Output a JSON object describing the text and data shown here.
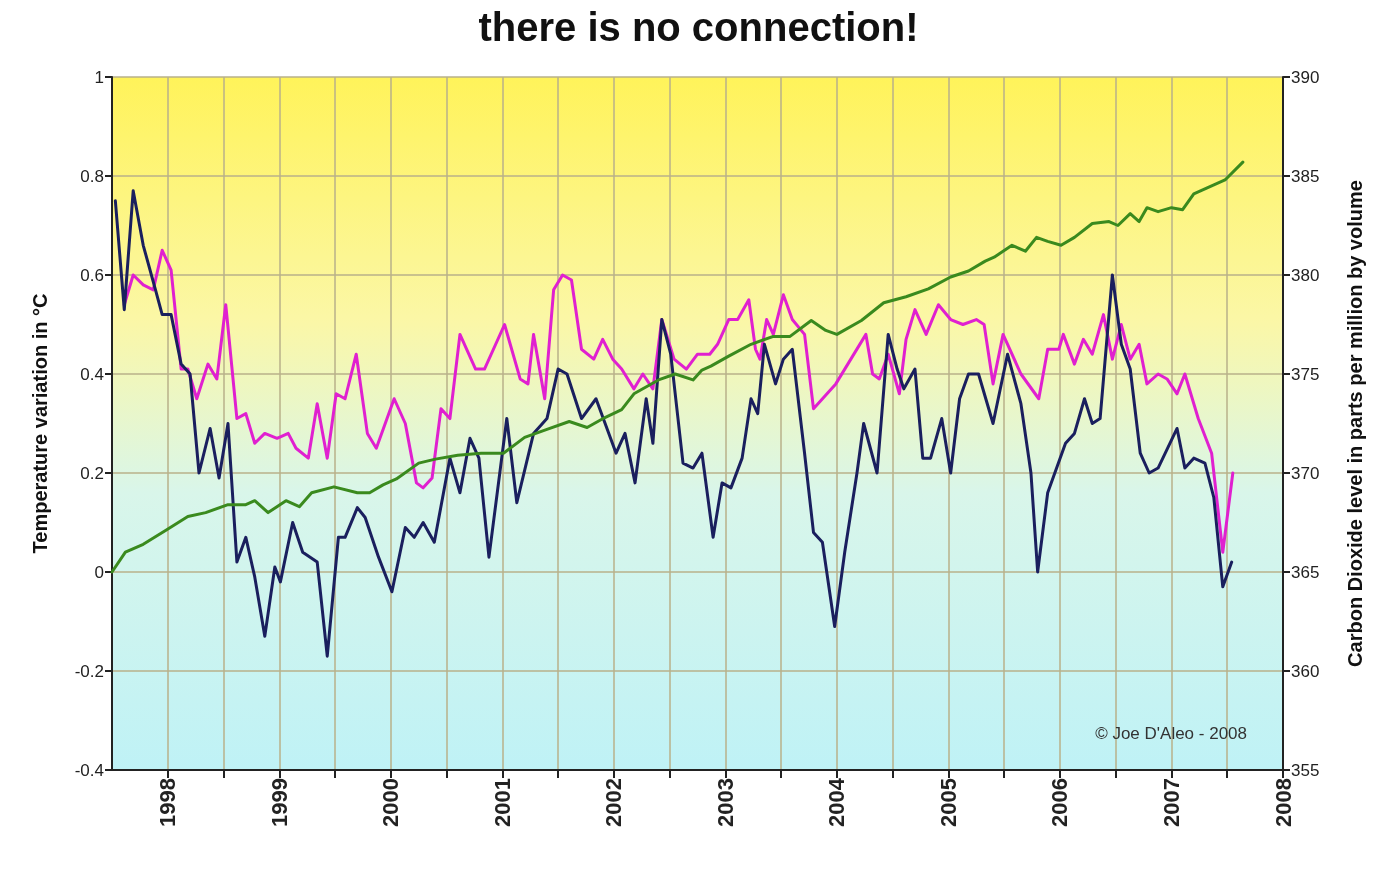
{
  "chart_data": {
    "type": "line",
    "title": "there is no connection!",
    "ylabel": "Temperature variation in °C",
    "y2label": "Carbon Dioxide level in parts per million by volume",
    "annotations": [
      "© Joe D'Aleo - 2008"
    ],
    "xlim": [
      1997.5,
      2008
    ],
    "xticks": [
      1998,
      {
        "value": 1998.5,
        "label": null
      },
      1999,
      {
        "value": 1999.5,
        "label": null
      },
      2000,
      {
        "value": 2000.5,
        "label": null
      },
      2001,
      {
        "value": 2001.5,
        "label": null
      },
      2002,
      {
        "value": 2002.5,
        "label": null
      },
      2003,
      {
        "value": 2003.5,
        "label": null
      },
      2004,
      {
        "value": 2004.5,
        "label": null
      },
      2005,
      {
        "value": 2005.5,
        "label": null
      },
      2006,
      {
        "value": 2006.5,
        "label": null
      },
      2007,
      {
        "value": 2007.5,
        "label": null
      },
      2008
    ],
    "ylim": [
      -0.4,
      1
    ],
    "yticks": [
      -0.4,
      -0.2,
      0,
      0.2,
      0.4,
      0.6,
      0.8,
      1
    ],
    "y2lim": [
      355,
      390
    ],
    "y2ticks": [
      355,
      360,
      365,
      370,
      375,
      380,
      385,
      390
    ],
    "grid": true,
    "line_style": "solid",
    "series": [
      {
        "color": "#e020d0",
        "x": [
          1997.61,
          1997.69,
          1997.78,
          1997.87,
          1997.95,
          1998.03,
          1998.12,
          1998.18,
          1998.26,
          1998.36,
          1998.44,
          1998.52,
          1998.62,
          1998.7,
          1998.78,
          1998.87,
          1998.98,
          1999.08,
          1999.15,
          1999.26,
          1999.34,
          1999.43,
          1999.51,
          1999.59,
          1999.69,
          1999.79,
          1999.87,
          2000.03,
          2000.13,
          2000.23,
          2000.29,
          2000.37,
          2000.45,
          2000.53,
          2000.62,
          2000.76,
          2000.84,
          2001.02,
          2001.16,
          2001.23,
          2001.28,
          2001.38,
          2001.46,
          2001.54,
          2001.62,
          2001.71,
          2001.82,
          2001.9,
          2001.99,
          2002.07,
          2002.18,
          2002.26,
          2002.35,
          2002.43,
          2002.54,
          2002.65,
          2002.75,
          2002.86,
          2002.93,
          2003.03,
          2003.11,
          2003.21,
          2003.27,
          2003.31,
          2003.37,
          2003.43,
          2003.52,
          2003.6,
          2003.71,
          2003.79,
          2003.99,
          2004.26,
          2004.32,
          2004.38,
          2004.46,
          2004.56,
          2004.62,
          2004.7,
          2004.8,
          2004.91,
          2005.02,
          2005.13,
          2005.25,
          2005.32,
          2005.4,
          2005.49,
          2005.65,
          2005.81,
          2005.89,
          2005.99,
          2006.03,
          2006.13,
          2006.21,
          2006.29,
          2006.39,
          2006.47,
          2006.55,
          2006.63,
          2006.71,
          2006.78,
          2006.88,
          2006.96,
          2007.05,
          2007.12,
          2007.24,
          2007.36,
          2007.46,
          2007.55
        ],
        "values": [
          0.54,
          0.6,
          0.58,
          0.57,
          0.65,
          0.61,
          0.41,
          0.41,
          0.35,
          0.42,
          0.39,
          0.54,
          0.31,
          0.32,
          0.26,
          0.28,
          0.27,
          0.28,
          0.25,
          0.23,
          0.34,
          0.23,
          0.36,
          0.35,
          0.44,
          0.28,
          0.25,
          0.35,
          0.3,
          0.18,
          0.17,
          0.19,
          0.33,
          0.31,
          0.48,
          0.41,
          0.41,
          0.5,
          0.39,
          0.38,
          0.48,
          0.35,
          0.57,
          0.6,
          0.59,
          0.45,
          0.43,
          0.47,
          0.43,
          0.41,
          0.37,
          0.4,
          0.37,
          0.51,
          0.43,
          0.41,
          0.44,
          0.44,
          0.46,
          0.51,
          0.51,
          0.55,
          0.45,
          0.43,
          0.51,
          0.48,
          0.56,
          0.51,
          0.48,
          0.33,
          0.38,
          0.48,
          0.4,
          0.39,
          0.44,
          0.36,
          0.47,
          0.53,
          0.48,
          0.54,
          0.51,
          0.5,
          0.51,
          0.5,
          0.38,
          0.48,
          0.4,
          0.35,
          0.45,
          0.45,
          0.48,
          0.42,
          0.47,
          0.44,
          0.52,
          0.43,
          0.5,
          0.43,
          0.46,
          0.38,
          0.4,
          0.39,
          0.36,
          0.4,
          0.31,
          0.24,
          0.04,
          0.2
        ]
      },
      {
        "color": "#1a1f5e",
        "x": [
          1997.53,
          1997.61,
          1997.69,
          1997.78,
          1997.89,
          1997.95,
          1998.03,
          1998.12,
          1998.2,
          1998.28,
          1998.38,
          1998.46,
          1998.54,
          1998.62,
          1998.7,
          1998.78,
          1998.87,
          1998.96,
          1999.01,
          1999.12,
          1999.21,
          1999.34,
          1999.43,
          1999.53,
          1999.59,
          1999.7,
          1999.77,
          1999.89,
          2000.01,
          2000.13,
          2000.21,
          2000.29,
          2000.39,
          2000.53,
          2000.62,
          2000.71,
          2000.79,
          2000.88,
          2001.04,
          2001.13,
          2001.28,
          2001.4,
          2001.5,
          2001.58,
          2001.71,
          2001.84,
          2002.02,
          2002.1,
          2002.19,
          2002.29,
          2002.35,
          2002.43,
          2002.51,
          2002.62,
          2002.71,
          2002.79,
          2002.89,
          2002.97,
          2003.05,
          2003.15,
          2003.23,
          2003.29,
          2003.35,
          2003.45,
          2003.52,
          2003.6,
          2003.71,
          2003.79,
          2003.87,
          2003.98,
          2004.07,
          2004.18,
          2004.24,
          2004.36,
          2004.46,
          2004.54,
          2004.6,
          2004.7,
          2004.77,
          2004.84,
          2004.94,
          2005.02,
          2005.1,
          2005.18,
          2005.27,
          2005.4,
          2005.53,
          2005.65,
          2005.74,
          2005.8,
          2005.89,
          2006.05,
          2006.13,
          2006.22,
          2006.29,
          2006.36,
          2006.47,
          2006.55,
          2006.63,
          2006.72,
          2006.8,
          2006.88,
          2007.05,
          2007.12,
          2007.2,
          2007.3,
          2007.38,
          2007.46,
          2007.54
        ],
        "values": [
          0.75,
          0.53,
          0.77,
          0.66,
          0.57,
          0.52,
          0.52,
          0.42,
          0.4,
          0.2,
          0.29,
          0.19,
          0.3,
          0.02,
          0.07,
          -0.01,
          -0.13,
          0.01,
          -0.02,
          0.1,
          0.04,
          0.02,
          -0.17,
          0.07,
          0.07,
          0.13,
          0.11,
          0.03,
          -0.04,
          0.09,
          0.07,
          0.1,
          0.06,
          0.23,
          0.16,
          0.27,
          0.23,
          0.03,
          0.31,
          0.14,
          0.28,
          0.31,
          0.41,
          0.4,
          0.31,
          0.35,
          0.24,
          0.28,
          0.18,
          0.35,
          0.26,
          0.51,
          0.44,
          0.22,
          0.21,
          0.24,
          0.07,
          0.18,
          0.17,
          0.23,
          0.35,
          0.32,
          0.46,
          0.38,
          0.43,
          0.45,
          0.24,
          0.08,
          0.06,
          -0.11,
          0.04,
          0.2,
          0.3,
          0.2,
          0.48,
          0.41,
          0.37,
          0.41,
          0.23,
          0.23,
          0.31,
          0.2,
          0.35,
          0.4,
          0.4,
          0.3,
          0.44,
          0.34,
          0.2,
          0,
          0.16,
          0.26,
          0.28,
          0.35,
          0.3,
          0.31,
          0.6,
          0.46,
          0.41,
          0.24,
          0.2,
          0.21,
          0.29,
          0.21,
          0.23,
          0.22,
          0.15,
          -0.03,
          0.02
        ]
      },
      {
        "color": "#3a8a1e",
        "axis": "y2",
        "x": [
          1997.5,
          1997.62,
          1997.78,
          1997.98,
          1998.18,
          1998.34,
          1998.54,
          1998.7,
          1998.78,
          1998.9,
          1999.06,
          1999.18,
          1999.29,
          1999.49,
          1999.7,
          1999.81,
          1999.93,
          2000.05,
          2000.25,
          2000.4,
          2000.6,
          2000.81,
          2001.01,
          2001.2,
          2001.4,
          2001.6,
          2001.76,
          2001.92,
          2002.07,
          2002.18,
          2002.4,
          2002.55,
          2002.71,
          2002.79,
          2002.87,
          2003.03,
          2003.23,
          2003.43,
          2003.58,
          2003.77,
          2003.9,
          2004,
          2004.22,
          2004.42,
          2004.62,
          2004.82,
          2005.02,
          2005.18,
          2005.33,
          2005.41,
          2005.57,
          2005.69,
          2005.79,
          2005.89,
          2006.01,
          2006.13,
          2006.29,
          2006.44,
          2006.52,
          2006.63,
          2006.71,
          2006.78,
          2006.88,
          2007,
          2007.1,
          2007.2,
          2007.32,
          2007.48,
          2007.64
        ],
        "values": [
          365,
          366,
          366.4,
          367.1,
          367.8,
          368,
          368.4,
          368.4,
          368.6,
          368,
          368.6,
          368.3,
          369,
          369.3,
          369,
          369,
          369.4,
          369.7,
          370.5,
          370.7,
          370.9,
          371,
          371,
          371.8,
          372.2,
          372.6,
          372.3,
          372.8,
          373.2,
          374,
          374.7,
          375,
          374.7,
          375.2,
          375.4,
          375.9,
          376.5,
          376.9,
          376.9,
          377.7,
          377.2,
          377,
          377.7,
          378.6,
          378.9,
          379.3,
          379.9,
          380.2,
          380.7,
          380.9,
          381.5,
          381.2,
          381.9,
          381.7,
          381.5,
          381.9,
          382.6,
          382.7,
          382.5,
          383.1,
          382.7,
          383.4,
          383.2,
          383.4,
          383.3,
          384.1,
          384.4,
          384.8,
          385.7
        ]
      }
    ]
  }
}
